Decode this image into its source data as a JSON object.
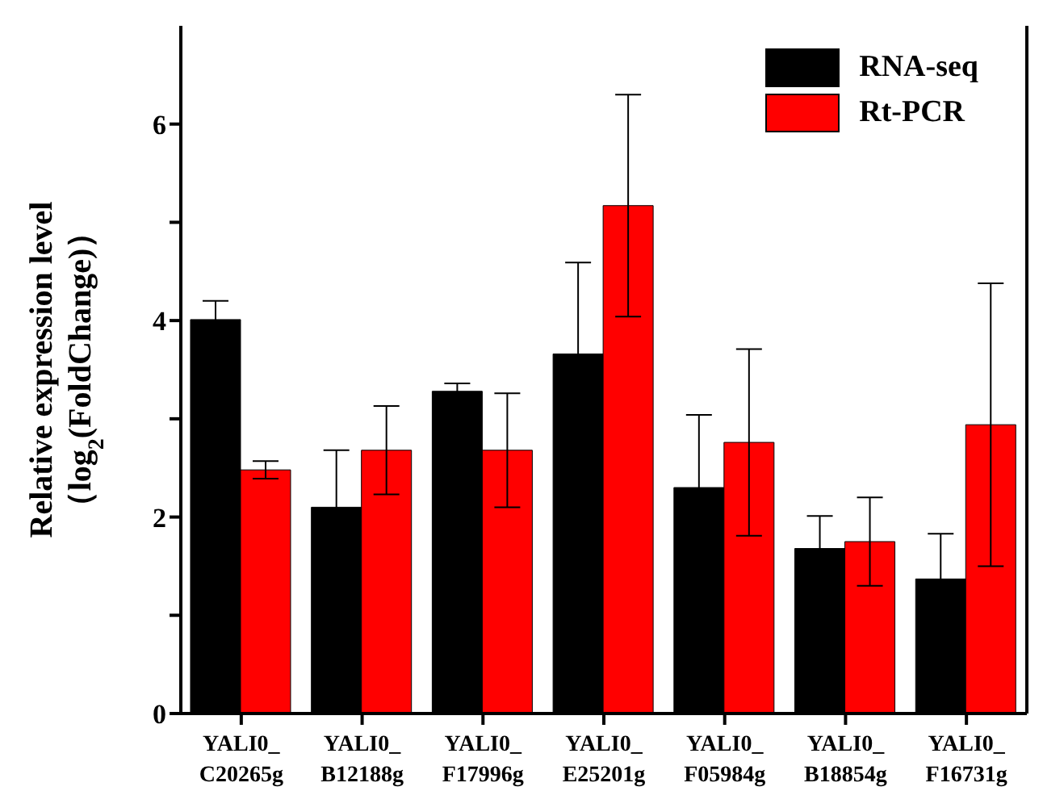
{
  "chart_data": {
    "type": "bar",
    "ylabel": "Relative expression level\n（log$_{2}$(FoldChange)）",
    "categories": [
      "YALI0_ C20265g",
      "YALI0_ B12188g",
      "YALI0_ F17996g",
      "YALI0_ E25201g",
      "YALI0_ F05984g",
      "YALI0_ B18854g",
      "YALI0_ F16731g"
    ],
    "series": [
      {
        "name": "RNA-seq",
        "color": "#000000",
        "values": [
          4.01,
          2.1,
          3.28,
          3.66,
          2.3,
          1.68,
          1.37
        ],
        "errors": [
          0.19,
          0.58,
          0.08,
          0.93,
          0.74,
          0.33,
          0.46
        ]
      },
      {
        "name": "Rt-PCR",
        "color": "#ff0000",
        "values": [
          2.48,
          2.68,
          2.68,
          5.17,
          2.76,
          1.75,
          2.94
        ],
        "errors": [
          0.09,
          0.45,
          0.58,
          1.13,
          0.95,
          0.45,
          1.44
        ]
      }
    ],
    "ylim": [
      0,
      7
    ],
    "yticks": [
      0,
      {
        "value": 1,
        "label": null
      },
      2,
      {
        "value": 3,
        "label": null
      },
      4,
      {
        "value": 5,
        "label": null
      },
      6
    ],
    "grid": false,
    "legend": "top right"
  }
}
